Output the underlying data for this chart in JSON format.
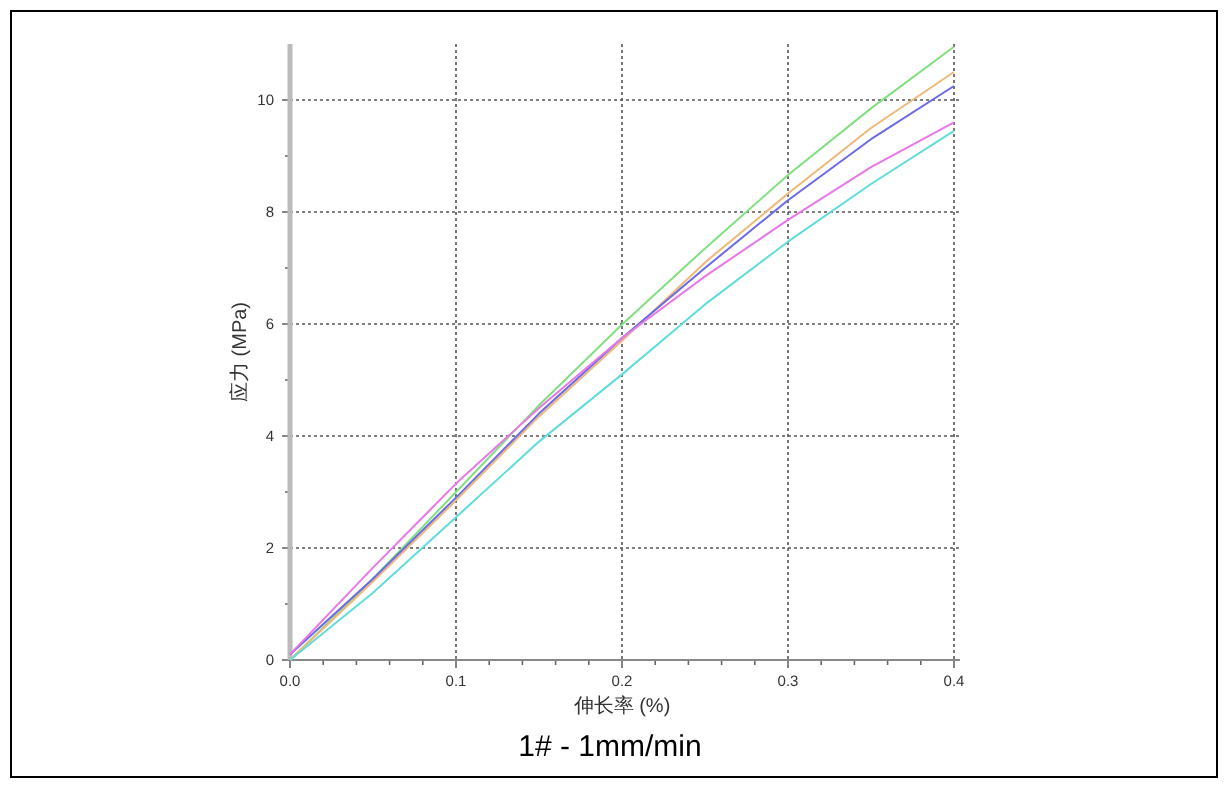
{
  "chart_data": {
    "type": "line",
    "title": "1# - 1mm/min",
    "xlabel": "伸长率 (%)",
    "ylabel": "应力 (MPa)",
    "x": [
      0,
      0.05,
      0.1,
      0.15,
      0.2,
      0.25,
      0.3,
      0.35,
      0.4
    ],
    "series": [
      {
        "color": "#80e080",
        "values": [
          0,
          1.45,
          3.0,
          4.55,
          5.99,
          7.35,
          8.66,
          9.85,
          10.95
        ]
      },
      {
        "color": "#f0b878",
        "values": [
          0,
          1.4,
          2.85,
          4.35,
          5.7,
          7.1,
          8.33,
          9.5,
          10.5
        ]
      },
      {
        "color": "#6a6ae6",
        "values": [
          0.1,
          1.45,
          2.9,
          4.4,
          5.75,
          7.0,
          8.21,
          9.3,
          10.25
        ]
      },
      {
        "color": "#e878e8",
        "values": [
          0.1,
          1.65,
          3.15,
          4.5,
          5.75,
          6.85,
          7.86,
          8.8,
          9.6
        ]
      },
      {
        "color": "#60dcdc",
        "values": [
          0,
          1.2,
          2.55,
          3.9,
          5.1,
          6.35,
          7.47,
          8.5,
          9.45
        ]
      }
    ],
    "xlim": [
      0,
      0.4
    ],
    "ylim": [
      0,
      11
    ],
    "xticks": [
      {
        "value": 0,
        "label": "0.0"
      },
      {
        "value": 0.02,
        "label": null
      },
      {
        "value": 0.04,
        "label": null
      },
      {
        "value": 0.06,
        "label": null
      },
      {
        "value": 0.08,
        "label": null
      },
      0.1,
      {
        "value": 0.12,
        "label": null
      },
      {
        "value": 0.14,
        "label": null
      },
      {
        "value": 0.16,
        "label": null
      },
      {
        "value": 0.18,
        "label": null
      },
      0.2,
      {
        "value": 0.22,
        "label": null
      },
      {
        "value": 0.24,
        "label": null
      },
      {
        "value": 0.26,
        "label": null
      },
      {
        "value": 0.28,
        "label": null
      },
      0.3,
      {
        "value": 0.32,
        "label": null
      },
      {
        "value": 0.34,
        "label": null
      },
      {
        "value": 0.36,
        "label": null
      },
      {
        "value": 0.38,
        "label": null
      },
      0.4
    ],
    "yticks": [
      0,
      {
        "value": 1,
        "label": null
      },
      2,
      {
        "value": 3,
        "label": null
      },
      4,
      {
        "value": 5,
        "label": null
      },
      6,
      {
        "value": 7,
        "label": null
      },
      8,
      {
        "value": 9,
        "label": null
      },
      10
    ],
    "grid": true
  }
}
